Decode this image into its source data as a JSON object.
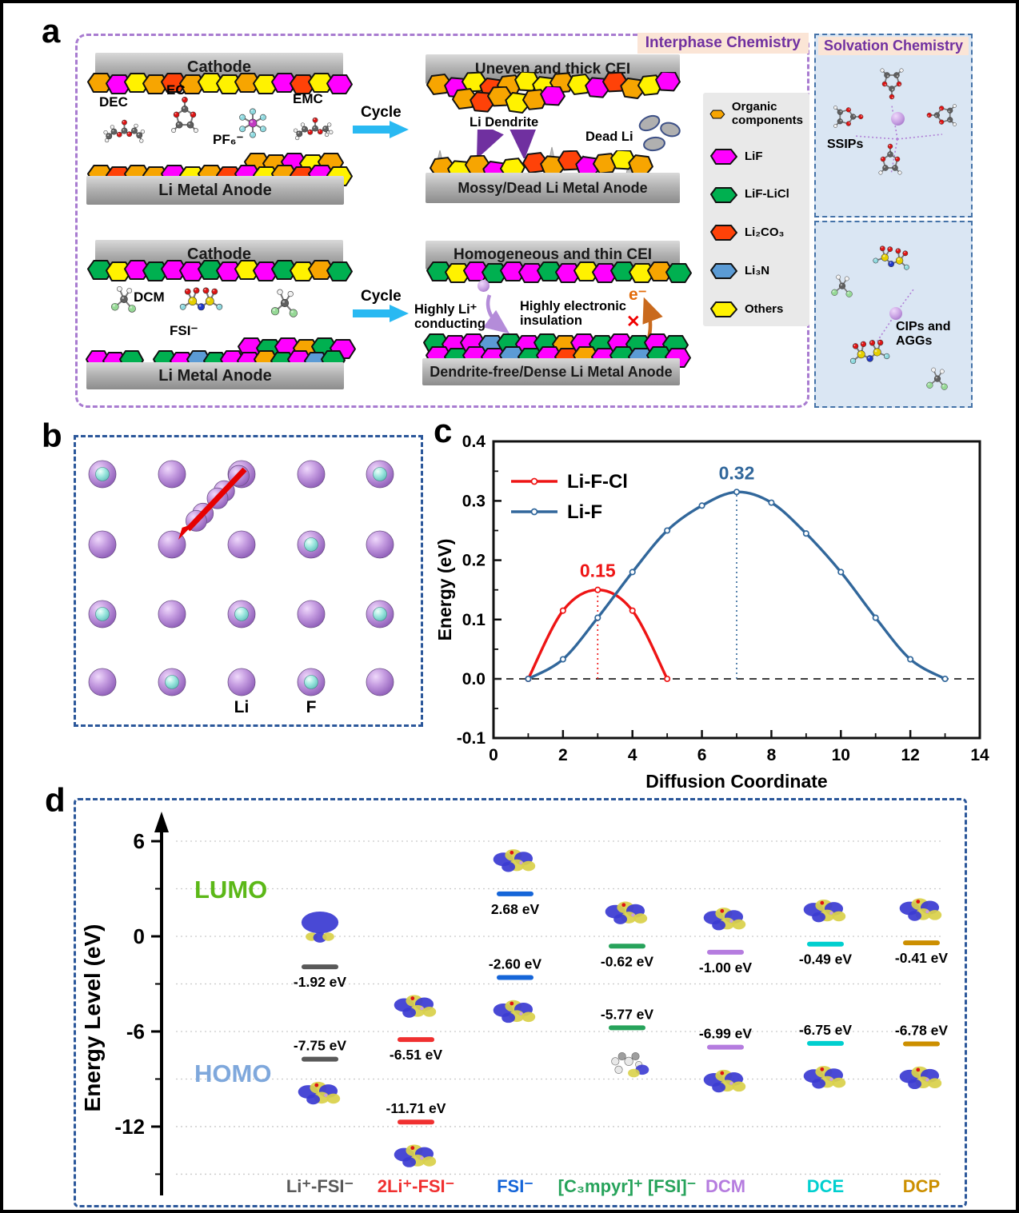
{
  "colors": {
    "o": "#F7A501",
    "m": "#FF00FF",
    "y": "#FFF200",
    "r": "#FF4208",
    "g": "#00B050",
    "b": "#5B9BD5"
  },
  "atom_colors": {
    "C": "#5F5F5F",
    "H": "#F2F2F2",
    "O": "#DE1313",
    "F": "#8ED9DF",
    "P": "#C23AC2",
    "S": "#E6CF00",
    "N": "#2038C8",
    "Cl": "#96D996",
    "Li": "#C89FE2"
  },
  "panel_a": {
    "label": "a",
    "interphase_header": "Interphase Chemistry",
    "solvation_header": "Solvation Chemistry",
    "cycle_label": "Cycle",
    "top_pristine": {
      "cathode": "Cathode",
      "anode": "Li Metal Anode",
      "dec": "DEC",
      "ec": "EC",
      "pf6": "PF₆⁻",
      "emc": "EMC"
    },
    "top_cycled": {
      "cei": "Uneven and thick CEI",
      "anode": "Mossy/Dead Li Metal Anode",
      "dendrite": "Li Dendrite",
      "dead_li": "Dead Li"
    },
    "bottom_pristine": {
      "cathode": "Cathode",
      "anode": "Li Metal Anode",
      "dcm": "DCM",
      "fsi": "FSI⁻"
    },
    "bottom_cycled": {
      "cei": "Homogeneous and thin CEI",
      "anode": "Dendrite-free/Dense Li Metal Anode",
      "conducting": "Highly Li⁺ conducting",
      "insulation": "Highly electronic insulation",
      "electron": "e⁻",
      "x_mark": "✕"
    },
    "legend": {
      "items": [
        {
          "label": "Organic components",
          "color": "o"
        },
        {
          "label": "LiF",
          "color": "m"
        },
        {
          "label": "LiF-LiCl",
          "color": "g"
        },
        {
          "label": "Li₂CO₃",
          "color": "r"
        },
        {
          "label": "Li₃N",
          "color": "b"
        },
        {
          "label": "Others",
          "color": "y"
        }
      ]
    },
    "solvation": {
      "ssips": "SSIPs",
      "cips": "CIPs and AGGs"
    },
    "particles": {
      "cei_top": [
        "o",
        "m",
        "y",
        "o",
        "r",
        "o",
        "y",
        "y",
        "o",
        "y",
        "m",
        "r",
        "y",
        "m"
      ],
      "anode_top_partial": [
        "o",
        "o",
        "m",
        "y",
        "o"
      ],
      "anode_top_main": [
        "o",
        "r",
        "o",
        "o",
        "m",
        "y",
        "o",
        "r",
        "m",
        "y",
        "o",
        "r",
        "m",
        "y"
      ],
      "uneven_cei_1": [
        "o",
        "m",
        "y",
        "r",
        "o",
        "y",
        "y",
        "o",
        "y",
        "m",
        "r",
        "o",
        "y",
        "m"
      ],
      "uneven_cei_2": [
        "o",
        "r",
        "o",
        "y",
        "o",
        "m"
      ],
      "mossy_1": [
        "o",
        "y",
        "o",
        "m",
        "y"
      ],
      "mossy_2": [
        "r",
        "o",
        "r",
        "m",
        "o",
        "y",
        "o"
      ],
      "cei_bottom": [
        "g",
        "y",
        "m",
        "g",
        "m",
        "m",
        "g",
        "m",
        "y",
        "m",
        "g",
        "y",
        "o",
        "g"
      ],
      "anode_bottom_partial": [
        "m",
        "g",
        "m",
        "o",
        "g",
        "m"
      ],
      "anode_bottom_main": [
        "m",
        "m",
        "g",
        "_",
        "g",
        "m",
        "b",
        "g",
        "m",
        "m",
        "o",
        "g",
        "m",
        "b",
        "g"
      ],
      "homog_cei": [
        "g",
        "y",
        "m",
        "g",
        "m",
        "m",
        "g",
        "m",
        "y",
        "m",
        "g",
        "y",
        "o",
        "g"
      ],
      "dense_1": [
        "g",
        "m",
        "m",
        "b",
        "g",
        "m",
        "g",
        "o",
        "m",
        "g",
        "m",
        "g",
        "m",
        "g"
      ],
      "dense_2": [
        "m",
        "g",
        "m",
        "m",
        "b",
        "g",
        "m",
        "r",
        "o",
        "m",
        "g",
        "b",
        "g",
        "m"
      ]
    }
  },
  "panel_b": {
    "label": "b",
    "li": "Li",
    "f": "F",
    "grid": [
      [
        "F",
        "Li",
        "Li",
        "Li",
        "F"
      ],
      [
        "Li",
        "Li",
        "Li",
        "F",
        "Li"
      ],
      [
        "F",
        "Li",
        "F",
        "Li",
        "F"
      ],
      [
        "Li",
        "F",
        "Li",
        "F",
        "Li"
      ]
    ]
  },
  "panel_c": {
    "label": "c"
  },
  "panel_d": {
    "label": "d"
  },
  "chart_data": [
    {
      "type": "line",
      "xlabel": "Diffusion Coordinate",
      "ylabel": "Energy (eV)",
      "xlim": [
        0,
        14
      ],
      "ylim": [
        -0.1,
        0.4
      ],
      "xticks": [
        0,
        2,
        4,
        6,
        8,
        10,
        12,
        14
      ],
      "yticks": [
        [
          -0.1,
          "-0.1"
        ],
        [
          0,
          "0.0"
        ],
        [
          0.1,
          "0.1"
        ],
        [
          0.2,
          "0.2"
        ],
        [
          0.3,
          "0.3"
        ],
        [
          0.4,
          "0.4"
        ]
      ],
      "zero_line": true,
      "legend_position": "top-left",
      "series": [
        {
          "name": "Li-F-Cl",
          "color": "#EE1515",
          "x": [
            1,
            2,
            3,
            4,
            5
          ],
          "y": [
            0.0,
            0.115,
            0.15,
            0.115,
            0.0
          ]
        },
        {
          "name": "Li-F",
          "color": "#31679B",
          "x": [
            1,
            2,
            3,
            4,
            5,
            6,
            7,
            8,
            9,
            10,
            11,
            12,
            13
          ],
          "y": [
            0.0,
            0.033,
            0.103,
            0.18,
            0.25,
            0.292,
            0.315,
            0.297,
            0.245,
            0.18,
            0.103,
            0.033,
            0.0
          ]
        }
      ],
      "annotations": [
        {
          "text": "0.15",
          "x": 3,
          "y": 0.15,
          "color": "#EE1515"
        },
        {
          "text": "0.32",
          "x": 7,
          "y": 0.315,
          "color": "#31679B"
        }
      ]
    },
    {
      "type": "energy-levels",
      "ylabel": "Energy Level (eV)",
      "lumo_label": "LUMO",
      "homo_label": "HOMO",
      "lumo_color": "#5CB818",
      "homo_color": "#7FA8DC",
      "yticks_major": [
        6,
        0,
        -6,
        -12
      ],
      "yticks_minor": [
        3,
        -3,
        -9,
        -15
      ],
      "gridlines": [
        6,
        3,
        0,
        -3,
        -6,
        -9,
        -12,
        -15
      ],
      "columns": [
        {
          "label": "Li⁺-FSI⁻",
          "color": "#595959",
          "lumo": -1.92,
          "homo": -7.75,
          "lumo_text": "-1.92 eV",
          "homo_text": "-7.75 eV",
          "lumo_style": "dome",
          "homo_style": "orb"
        },
        {
          "label": "2Li⁺-FSI⁻",
          "color": "#F03030",
          "lumo": -6.51,
          "homo": -11.71,
          "lumo_text": "-6.51 eV",
          "homo_text": "-11.71 eV",
          "lumo_style": "orb",
          "homo_style": "orb"
        },
        {
          "label": "FSI⁻",
          "color": "#1565D8",
          "lumo": 2.68,
          "homo": -2.6,
          "lumo_text": "2.68 eV",
          "homo_text": "-2.60 eV",
          "lumo_style": "orb",
          "homo_style": "orb"
        },
        {
          "label": "[C₃mpyr]⁺ [FSI]⁻",
          "color": "#27A35B",
          "lumo": -0.62,
          "homo": -5.77,
          "lumo_text": "-0.62 eV",
          "homo_text": "-5.77 eV",
          "lumo_style": "orb",
          "homo_style": "gray"
        },
        {
          "label": "DCM",
          "color": "#B57CDF",
          "lumo": -1.0,
          "homo": -6.99,
          "lumo_text": "-1.00 eV",
          "homo_text": "-6.99 eV",
          "lumo_style": "orb",
          "homo_style": "orb"
        },
        {
          "label": "DCE",
          "color": "#00CFCF",
          "lumo": -0.49,
          "homo": -6.75,
          "lumo_text": "-0.49 eV",
          "homo_text": "-6.75 eV",
          "lumo_style": "orb",
          "homo_style": "orb"
        },
        {
          "label": "DCP",
          "color": "#CC8F00",
          "lumo": -0.41,
          "homo": -6.78,
          "lumo_text": "-0.41 eV",
          "homo_text": "-6.78 eV",
          "lumo_style": "orb",
          "homo_style": "orb"
        }
      ]
    }
  ],
  "molecule_specs": {
    "dec": {
      "atoms": [
        [
          "H",
          4,
          57,
          4.5
        ],
        [
          "H",
          7,
          76,
          4.5
        ],
        [
          "C",
          12,
          66,
          7
        ],
        [
          "H",
          20,
          44,
          4.5
        ],
        [
          "C",
          24,
          55,
          7
        ],
        [
          "O",
          37,
          62,
          6
        ],
        [
          "C",
          49,
          53,
          7
        ],
        [
          "O",
          49,
          33,
          6
        ],
        [
          "O",
          61,
          61,
          6
        ],
        [
          "C",
          73,
          53,
          7
        ],
        [
          "H",
          77,
          41,
          4.5
        ],
        [
          "C",
          85,
          64,
          7
        ],
        [
          "H",
          93,
          55,
          4.5
        ],
        [
          "H",
          90,
          77,
          4.5
        ]
      ],
      "bonds": [
        [
          2,
          4
        ],
        [
          4,
          5
        ],
        [
          5,
          6
        ],
        [
          6,
          7
        ],
        [
          6,
          8
        ],
        [
          8,
          9
        ],
        [
          9,
          11
        ],
        [
          0,
          2
        ],
        [
          1,
          2
        ],
        [
          3,
          4
        ],
        [
          10,
          9
        ],
        [
          12,
          11
        ],
        [
          13,
          11
        ]
      ]
    },
    "ec": {
      "atoms": [
        [
          "O",
          50,
          10,
          6
        ],
        [
          "C",
          50,
          30,
          7
        ],
        [
          "O",
          32,
          42,
          6
        ],
        [
          "O",
          68,
          42,
          6
        ],
        [
          "C",
          38,
          64,
          7
        ],
        [
          "C",
          62,
          64,
          7
        ],
        [
          "H",
          26,
          76,
          4.5
        ],
        [
          "H",
          74,
          76,
          4.5
        ]
      ],
      "bonds": [
        [
          0,
          1
        ],
        [
          1,
          2
        ],
        [
          1,
          3
        ],
        [
          2,
          4
        ],
        [
          3,
          5
        ],
        [
          4,
          5
        ],
        [
          4,
          6
        ],
        [
          5,
          7
        ]
      ]
    },
    "pf6": {
      "atoms": [
        [
          "P",
          50,
          50,
          9
        ],
        [
          "F",
          50,
          24,
          6.5
        ],
        [
          "F",
          50,
          76,
          6.5
        ],
        [
          "F",
          27,
          37,
          6.5
        ],
        [
          "F",
          73,
          37,
          6.5
        ],
        [
          "F",
          27,
          63,
          6.5
        ],
        [
          "F",
          73,
          63,
          6.5
        ]
      ],
      "bonds": [
        [
          0,
          1
        ],
        [
          0,
          2
        ],
        [
          0,
          3
        ],
        [
          0,
          4
        ],
        [
          0,
          5
        ],
        [
          0,
          6
        ]
      ]
    },
    "emc": {
      "atoms": [
        [
          "H",
          5,
          60,
          4.5
        ],
        [
          "H",
          9,
          78,
          4.5
        ],
        [
          "C",
          14,
          68,
          7
        ],
        [
          "H",
          22,
          46,
          4.5
        ],
        [
          "C",
          27,
          57,
          7
        ],
        [
          "O",
          40,
          64,
          6
        ],
        [
          "C",
          52,
          55,
          7
        ],
        [
          "O",
          52,
          35,
          6
        ],
        [
          "O",
          64,
          63,
          6
        ],
        [
          "C",
          77,
          56,
          7
        ],
        [
          "H",
          86,
          46,
          4.5
        ],
        [
          "H",
          90,
          64,
          4.5
        ],
        [
          "H",
          80,
          70,
          4.5
        ]
      ],
      "bonds": [
        [
          2,
          4
        ],
        [
          4,
          5
        ],
        [
          5,
          6
        ],
        [
          6,
          7
        ],
        [
          6,
          8
        ],
        [
          8,
          9
        ],
        [
          0,
          2
        ],
        [
          1,
          2
        ],
        [
          3,
          4
        ],
        [
          9,
          10
        ],
        [
          9,
          11
        ],
        [
          9,
          12
        ]
      ]
    },
    "dcm": {
      "atoms": [
        [
          "H",
          40,
          22,
          5.5
        ],
        [
          "H",
          62,
          26,
          5.5
        ],
        [
          "C",
          50,
          45,
          8
        ],
        [
          "Cl",
          30,
          62,
          8
        ],
        [
          "Cl",
          68,
          66,
          8
        ]
      ],
      "bonds": [
        [
          2,
          0
        ],
        [
          2,
          1
        ],
        [
          2,
          3
        ],
        [
          2,
          4
        ]
      ]
    },
    "fsi": {
      "atoms": [
        [
          "O",
          22,
          26,
          6
        ],
        [
          "O",
          40,
          24,
          6
        ],
        [
          "O",
          60,
          24,
          6
        ],
        [
          "O",
          78,
          26,
          6
        ],
        [
          "S",
          32,
          46,
          8.5
        ],
        [
          "S",
          68,
          46,
          8.5
        ],
        [
          "N",
          50,
          58,
          7
        ],
        [
          "F",
          12,
          58,
          6
        ],
        [
          "F",
          88,
          58,
          6
        ]
      ],
      "bonds": [
        [
          4,
          0
        ],
        [
          4,
          1
        ],
        [
          5,
          2
        ],
        [
          5,
          3
        ],
        [
          4,
          6
        ],
        [
          5,
          6
        ],
        [
          4,
          7
        ],
        [
          5,
          8
        ]
      ]
    }
  }
}
